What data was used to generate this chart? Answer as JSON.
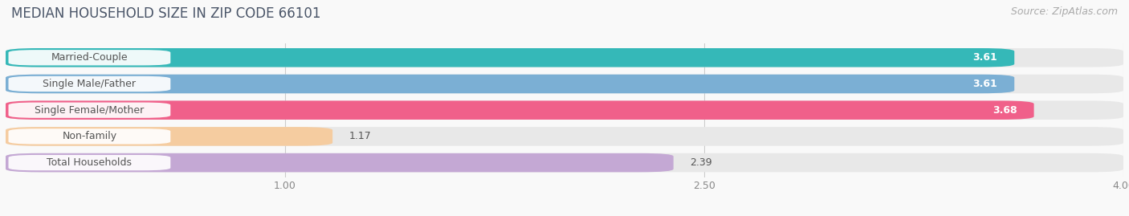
{
  "title": "MEDIAN HOUSEHOLD SIZE IN ZIP CODE 66101",
  "title_color": "#4a5568",
  "source": "Source: ZipAtlas.com",
  "categories": [
    "Married-Couple",
    "Single Male/Father",
    "Single Female/Mother",
    "Non-family",
    "Total Households"
  ],
  "values": [
    3.61,
    3.61,
    3.68,
    1.17,
    2.39
  ],
  "bar_colors": [
    "#35b8b8",
    "#7bafd4",
    "#f0608a",
    "#f5cca0",
    "#c4a8d4"
  ],
  "bg_bar_color": "#e8e8e8",
  "xlim": [
    0.0,
    4.0
  ],
  "xticks": [
    1.0,
    2.5,
    4.0
  ],
  "label_inside_threshold": 2.5,
  "title_fontsize": 12,
  "source_fontsize": 9,
  "bar_label_fontsize": 9,
  "cat_label_fontsize": 9,
  "bar_height": 0.72,
  "bar_gap": 0.28,
  "background_color": "#f9f9f9"
}
